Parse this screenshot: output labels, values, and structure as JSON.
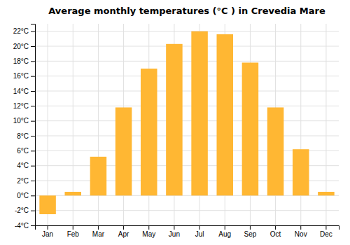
{
  "chart_data": {
    "type": "bar",
    "title": "Average monthly temperatures (°C ) in Crevedia Mare",
    "categories": [
      "Jan",
      "Feb",
      "Mar",
      "Apr",
      "May",
      "Jun",
      "Jul",
      "Aug",
      "Sep",
      "Oct",
      "Nov",
      "Dec"
    ],
    "values": [
      -2.5,
      0.5,
      5.2,
      11.8,
      17.0,
      20.3,
      22.0,
      21.6,
      17.8,
      11.8,
      6.2,
      0.5
    ],
    "color": "#FFB733",
    "ylim": [
      -4,
      23
    ],
    "yticks": [
      {
        "value": -4,
        "label": "-4°C"
      },
      {
        "value": -2,
        "label": "-2°C"
      },
      {
        "value": 0,
        "label": "0°C"
      },
      {
        "value": 2,
        "label": "2°C"
      },
      {
        "value": 4,
        "label": "4°C"
      },
      {
        "value": 6,
        "label": "6°C"
      },
      {
        "value": 8,
        "label": "8°C"
      },
      {
        "value": 10,
        "label": "10°C"
      },
      {
        "value": 12,
        "label": "12°C"
      },
      {
        "value": 14,
        "label": "14°C"
      },
      {
        "value": 16,
        "label": "16°C"
      },
      {
        "value": 18,
        "label": "18°C"
      },
      {
        "value": 20,
        "label": "20°C"
      },
      {
        "value": 22,
        "label": "22°C"
      }
    ],
    "grid": true
  }
}
